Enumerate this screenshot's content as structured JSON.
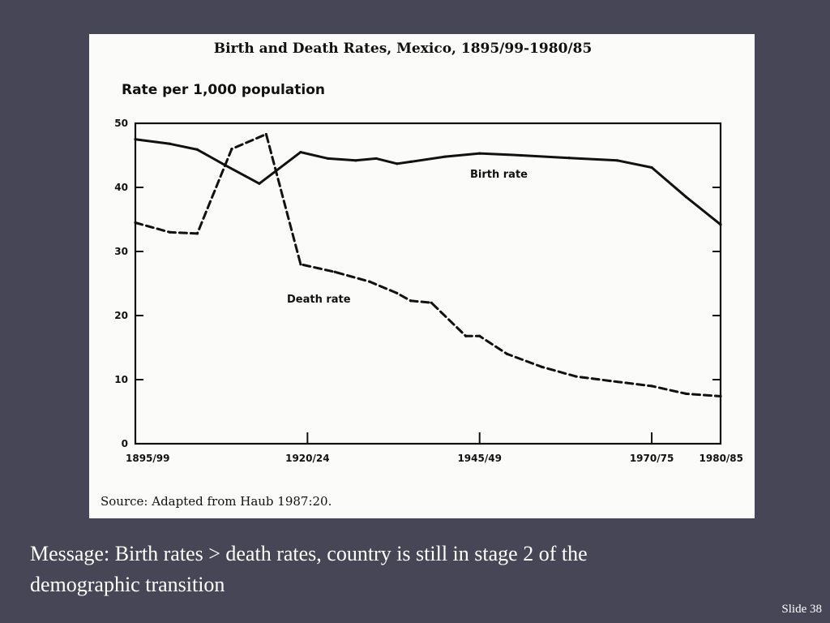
{
  "slide": {
    "message": "Message:  Birth rates > death rates, country is still in stage 2 of the demographic transition",
    "number_label": "Slide 38",
    "background": "#464656"
  },
  "chart_data": {
    "type": "line",
    "title": "Birth and Death Rates, Mexico, 1895/99-1980/85",
    "ylabel": "Rate per 1,000 population",
    "xlabel": "",
    "ylim": [
      0,
      50
    ],
    "yticks": [
      0,
      10,
      20,
      30,
      40,
      50
    ],
    "x_tick_labels": [
      "1895/99",
      "1920/24",
      "1945/49",
      "1970/75",
      "1980/85"
    ],
    "x_tick_positions": [
      1897,
      1922,
      1947,
      1972,
      1982
    ],
    "xlim": [
      1897,
      1982
    ],
    "grid": false,
    "legend": "direct labels on lines",
    "series": [
      {
        "name": "Birth rate",
        "style": "solid",
        "points": [
          [
            1897,
            47.5
          ],
          [
            1902,
            46.8
          ],
          [
            1906,
            45.9
          ],
          [
            1910,
            43.5
          ],
          [
            1915,
            40.6
          ],
          [
            1921,
            45.5
          ],
          [
            1925,
            44.5
          ],
          [
            1929,
            44.2
          ],
          [
            1932,
            44.5
          ],
          [
            1935,
            43.7
          ],
          [
            1937,
            44.0
          ],
          [
            1942,
            44.8
          ],
          [
            1947,
            45.3
          ],
          [
            1953,
            45.0
          ],
          [
            1960,
            44.6
          ],
          [
            1967,
            44.2
          ],
          [
            1972,
            43.1
          ],
          [
            1977,
            38.5
          ],
          [
            1982,
            34.2
          ]
        ]
      },
      {
        "name": "Death rate",
        "style": "dashed",
        "points": [
          [
            1897,
            34.5
          ],
          [
            1902,
            33.0
          ],
          [
            1906,
            32.8
          ],
          [
            1911,
            46.0
          ],
          [
            1916,
            48.3
          ],
          [
            1921,
            28.0
          ],
          [
            1926,
            26.8
          ],
          [
            1931,
            25.3
          ],
          [
            1935,
            23.5
          ],
          [
            1937,
            22.3
          ],
          [
            1940,
            22.0
          ],
          [
            1945,
            16.8
          ],
          [
            1947,
            16.8
          ],
          [
            1951,
            14.0
          ],
          [
            1956,
            12.0
          ],
          [
            1961,
            10.5
          ],
          [
            1966,
            9.8
          ],
          [
            1972,
            9.0
          ],
          [
            1977,
            7.8
          ],
          [
            1982,
            7.4
          ]
        ]
      }
    ],
    "annotations": {
      "source": "Source:  Adapted from Haub 1987:20."
    }
  }
}
